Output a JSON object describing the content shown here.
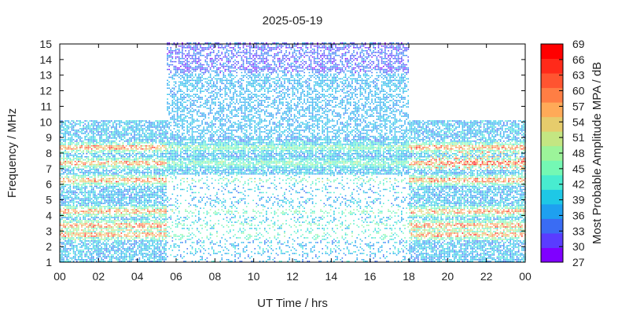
{
  "chart_data": {
    "type": "heatmap",
    "title": "2025-05-19",
    "xlabel": "UT Time / hrs",
    "ylabel": "Frequency / MHz",
    "colorbar_label": "Most Probable Amplitude MPA / dB",
    "xlim": [
      0,
      24
    ],
    "ylim": [
      1,
      15
    ],
    "x_tick_labels": [
      "00",
      "02",
      "04",
      "06",
      "08",
      "10",
      "12",
      "14",
      "16",
      "18",
      "20",
      "22",
      "00"
    ],
    "y_tick_labels": [
      "1",
      "2",
      "3",
      "4",
      "5",
      "6",
      "7",
      "8",
      "9",
      "10",
      "11",
      "12",
      "13",
      "14",
      "15"
    ],
    "colorbar_ticks": [
      "27",
      "30",
      "33",
      "36",
      "39",
      "42",
      "45",
      "48",
      "51",
      "54",
      "57",
      "60",
      "63",
      "66",
      "69"
    ],
    "colorbar_range": [
      27,
      69
    ],
    "colorbar_colors": [
      "#7f00ff",
      "#5a3cff",
      "#3a6cf4",
      "#1ea0f0",
      "#1ec8e6",
      "#48ecd0",
      "#74f8b4",
      "#9cf49a",
      "#c4e682",
      "#e6cc6c",
      "#ffaa58",
      "#ff7e44",
      "#ff5430",
      "#ff2a1a",
      "#ff0000"
    ],
    "grid": false,
    "legend": "colorbar-right",
    "frequency_coverage": [
      {
        "time_range": [
          0,
          5.5
        ],
        "max_mhz": 10
      },
      {
        "time_range": [
          5.5,
          18
        ],
        "max_mhz": 15
      },
      {
        "time_range": [
          18,
          24
        ],
        "max_mhz": 10
      }
    ],
    "strong_bands_mhz": [
      2.7,
      3.3,
      4.2,
      6.2,
      7.3,
      8.3
    ]
  }
}
